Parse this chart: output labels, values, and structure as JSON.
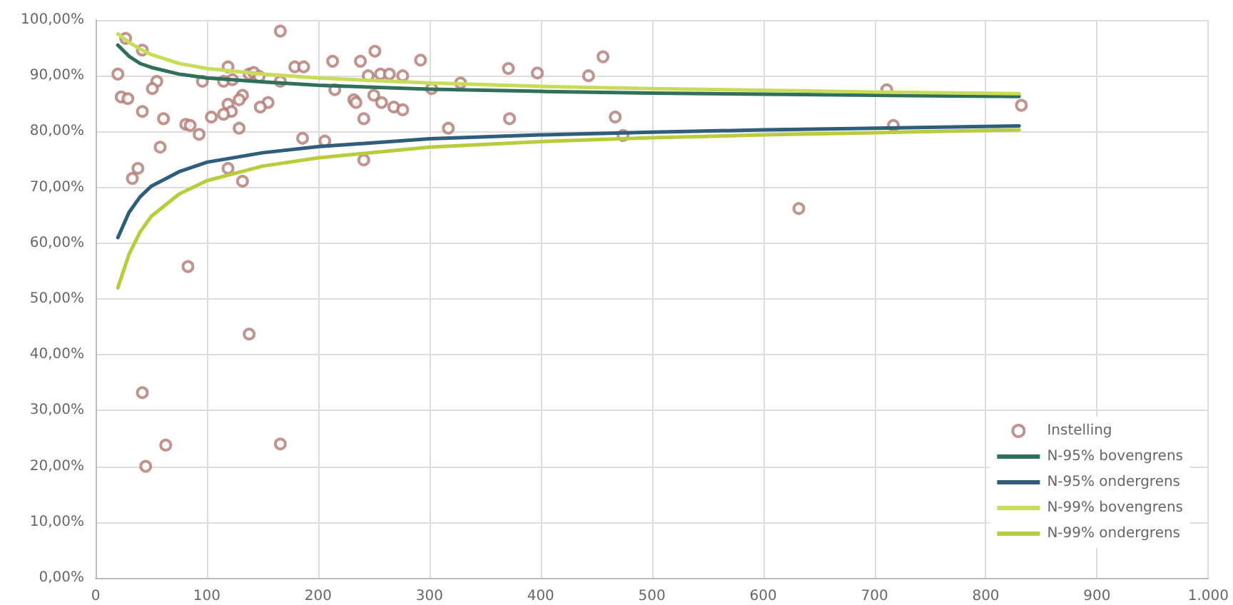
{
  "chart_data": {
    "type": "scatter",
    "legend": "bottom right",
    "grid": true,
    "xlim": [
      0,
      1000
    ],
    "xticks": [
      0,
      100,
      200,
      300,
      400,
      500,
      600,
      700,
      800,
      900,
      {
        "value": 1000,
        "label": "1.000"
      }
    ],
    "ylim": [
      0,
      100
    ],
    "yticks": [
      {
        "value": 0,
        "label": "0,00%"
      },
      {
        "value": 10,
        "label": "10,00%"
      },
      {
        "value": 20,
        "label": "20,00%"
      },
      {
        "value": 30,
        "label": "30,00%"
      },
      {
        "value": 40,
        "label": "40,00%"
      },
      {
        "value": 50,
        "label": "50,00%"
      },
      {
        "value": 60,
        "label": "60,00%"
      },
      {
        "value": 70,
        "label": "70,00%"
      },
      {
        "value": 80,
        "label": "80,00%"
      },
      {
        "value": 90,
        "label": "90,00%"
      },
      {
        "value": 100,
        "label": "100,00%"
      }
    ],
    "series": [
      {
        "name": "Instelling",
        "marker": "circle",
        "color": "#b07a74",
        "x": [
          27,
          42,
          20,
          23,
          29,
          55,
          51,
          42,
          61,
          81,
          85,
          93,
          58,
          38,
          33,
          119,
          132,
          96,
          119,
          115,
          123,
          138,
          142,
          147,
          166,
          166,
          179,
          187,
          213,
          238,
          215,
          132,
          129,
          119,
          155,
          148,
          122,
          115,
          104,
          129,
          186,
          206,
          232,
          241,
          251,
          292,
          371,
          234,
          245,
          256,
          264,
          276,
          250,
          257,
          268,
          276,
          302,
          328,
          317,
          372,
          241,
          397,
          443,
          456,
          467,
          474,
          711,
          717,
          832,
          632,
          83,
          138,
          42,
          63,
          45,
          166
        ],
        "values": [
          96.7,
          94.6,
          90.3,
          86.2,
          85.9,
          89.0,
          87.7,
          83.6,
          82.3,
          81.3,
          81.1,
          79.5,
          77.2,
          73.4,
          71.6,
          73.4,
          71.1,
          89.0,
          91.6,
          89.0,
          89.3,
          90.3,
          90.6,
          89.9,
          98.0,
          89.0,
          91.6,
          91.6,
          92.6,
          92.6,
          87.5,
          86.5,
          85.7,
          84.9,
          85.2,
          84.4,
          83.6,
          83.1,
          82.6,
          80.6,
          78.8,
          78.3,
          85.7,
          82.3,
          94.4,
          92.8,
          91.3,
          85.2,
          90.0,
          90.3,
          90.3,
          90.0,
          86.5,
          85.2,
          84.4,
          83.9,
          87.7,
          88.7,
          80.6,
          82.3,
          74.9,
          90.5,
          90.0,
          93.4,
          82.6,
          79.3,
          87.5,
          81.1,
          84.7,
          66.2,
          55.8,
          43.7,
          33.2,
          23.8,
          20.0,
          24.0
        ]
      },
      {
        "name": "N-95% bovengrens",
        "type": "line",
        "marker": "none",
        "color": "#2f6f5c",
        "x": [
          20,
          30,
          40,
          50,
          75,
          100,
          150,
          200,
          300,
          400,
          500,
          600,
          700,
          830
        ],
        "values": [
          95.5,
          93.5,
          92.2,
          91.5,
          90.3,
          89.6,
          88.9,
          88.3,
          87.6,
          87.2,
          86.9,
          86.7,
          86.5,
          86.3
        ]
      },
      {
        "name": "N-95% ondergrens",
        "type": "line",
        "marker": "none",
        "color": "#2f5d7c",
        "x": [
          20,
          30,
          40,
          50,
          75,
          100,
          150,
          200,
          300,
          400,
          500,
          600,
          700,
          830
        ],
        "values": [
          61,
          65.5,
          68.3,
          70.2,
          72.8,
          74.5,
          76.2,
          77.3,
          78.7,
          79.4,
          79.9,
          80.3,
          80.6,
          81
        ]
      },
      {
        "name": "N-99% bovengrens",
        "type": "line",
        "marker": "none",
        "color": "#c9dc5a",
        "x": [
          20,
          30,
          40,
          50,
          75,
          100,
          150,
          200,
          300,
          400,
          500,
          600,
          700,
          830
        ],
        "values": [
          97.5,
          96,
          94.8,
          93.8,
          92.2,
          91.3,
          90.3,
          89.6,
          88.7,
          88.1,
          87.7,
          87.4,
          87.1,
          86.8
        ]
      },
      {
        "name": "N-99% ondergrens",
        "type": "line",
        "marker": "none",
        "color": "#b8cc3c",
        "x": [
          20,
          30,
          40,
          50,
          75,
          100,
          150,
          200,
          300,
          400,
          500,
          600,
          700,
          830
        ],
        "values": [
          52,
          58,
          62,
          64.8,
          68.8,
          71.2,
          73.8,
          75.3,
          77.2,
          78.2,
          78.9,
          79.4,
          79.8,
          80.3
        ]
      }
    ]
  }
}
